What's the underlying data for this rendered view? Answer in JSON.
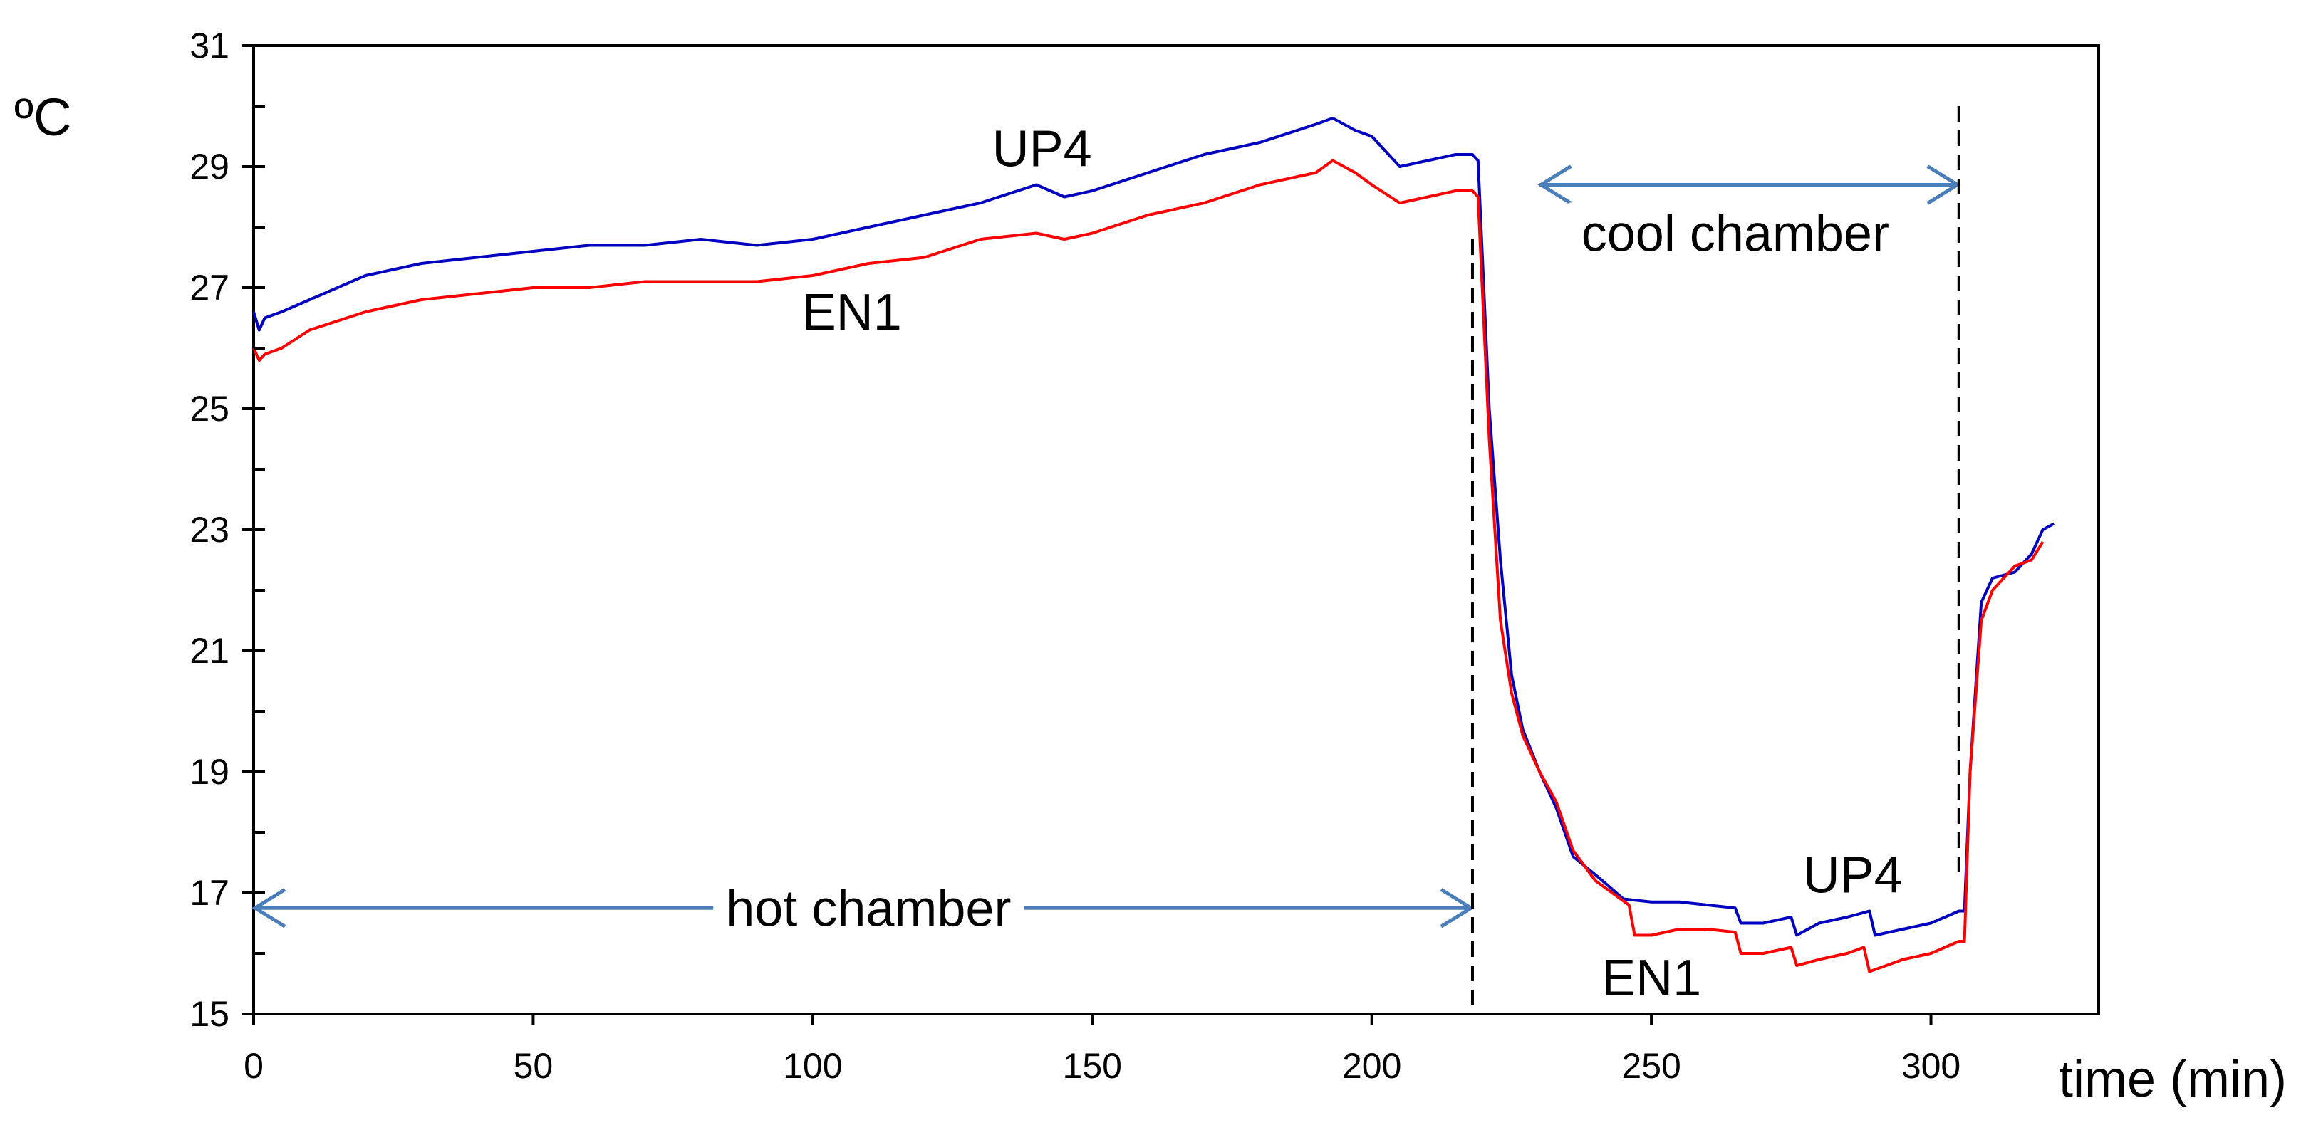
{
  "chart_data": {
    "type": "line",
    "xlabel": "time (min)",
    "ylabel": "ºC",
    "xlim": [
      0,
      330
    ],
    "ylim": [
      15,
      31
    ],
    "xticks": [
      0,
      50,
      100,
      150,
      200,
      250,
      300
    ],
    "yticks": [
      15,
      17,
      19,
      21,
      23,
      25,
      27,
      29,
      31
    ],
    "yminor_step": 1,
    "grid": false,
    "colors": {
      "UP4": "#0000c0",
      "EN1": "#ff0000",
      "arrow": "#4a7ebb",
      "frame": "#000000"
    },
    "series": [
      {
        "name": "UP4",
        "x": [
          0,
          1,
          2,
          5,
          10,
          20,
          30,
          40,
          50,
          60,
          70,
          80,
          90,
          100,
          110,
          120,
          130,
          140,
          145,
          150,
          160,
          170,
          180,
          190,
          193,
          197,
          200,
          205,
          210,
          215,
          218,
          219,
          221,
          223,
          225,
          227,
          230,
          233,
          236,
          240,
          245,
          250,
          255,
          260,
          265,
          266,
          270,
          275,
          276,
          280,
          285,
          289,
          290,
          295,
          300,
          305,
          306,
          307,
          309,
          311,
          315,
          318,
          320,
          322
        ],
        "y": [
          26.6,
          26.3,
          26.5,
          26.6,
          26.8,
          27.2,
          27.4,
          27.5,
          27.6,
          27.7,
          27.7,
          27.8,
          27.7,
          27.8,
          28.0,
          28.2,
          28.4,
          28.7,
          28.5,
          28.6,
          28.9,
          29.2,
          29.4,
          29.7,
          29.8,
          29.6,
          29.5,
          29.0,
          29.1,
          29.2,
          29.2,
          29.1,
          25.0,
          22.5,
          20.6,
          19.7,
          19.0,
          18.4,
          17.6,
          17.3,
          16.9,
          16.85,
          16.85,
          16.8,
          16.75,
          16.5,
          16.5,
          16.6,
          16.3,
          16.5,
          16.6,
          16.7,
          16.3,
          16.4,
          16.5,
          16.7,
          16.7,
          19.0,
          21.8,
          22.2,
          22.3,
          22.6,
          23.0,
          23.1
        ]
      },
      {
        "name": "EN1",
        "x": [
          0,
          1,
          2,
          5,
          10,
          20,
          30,
          40,
          50,
          60,
          70,
          80,
          90,
          100,
          110,
          120,
          130,
          140,
          145,
          150,
          160,
          170,
          180,
          190,
          193,
          197,
          200,
          205,
          210,
          215,
          218,
          219,
          221,
          223,
          225,
          227,
          230,
          233,
          236,
          240,
          246,
          247,
          250,
          255,
          260,
          265,
          266,
          270,
          275,
          276,
          280,
          285,
          288,
          289,
          295,
          300,
          305,
          306,
          307,
          309,
          311,
          315,
          318,
          320
        ],
        "y": [
          26.0,
          25.8,
          25.9,
          26.0,
          26.3,
          26.6,
          26.8,
          26.9,
          27.0,
          27.0,
          27.1,
          27.1,
          27.1,
          27.2,
          27.4,
          27.5,
          27.8,
          27.9,
          27.8,
          27.9,
          28.2,
          28.4,
          28.7,
          28.9,
          29.1,
          28.9,
          28.7,
          28.4,
          28.5,
          28.6,
          28.6,
          28.5,
          24.5,
          21.5,
          20.3,
          19.6,
          19.0,
          18.5,
          17.7,
          17.2,
          16.8,
          16.3,
          16.3,
          16.4,
          16.4,
          16.35,
          16.0,
          16.0,
          16.1,
          15.8,
          15.9,
          16.0,
          16.1,
          15.7,
          15.9,
          16.0,
          16.2,
          16.2,
          19.0,
          21.5,
          22.0,
          22.4,
          22.5,
          22.8
        ]
      }
    ],
    "annotations": [
      {
        "text": "UP4",
        "x": 141,
        "y": 29.3
      },
      {
        "text": "EN1",
        "x": 107,
        "y": 26.6
      },
      {
        "text": "UP4",
        "x": 286,
        "y": 17.3
      },
      {
        "text": "EN1",
        "x": 250,
        "y": 15.6
      },
      {
        "text": "hot chamber",
        "x": 110,
        "y": 16.75
      },
      {
        "text": "cool chamber",
        "x": 265,
        "y": 27.9
      }
    ],
    "ranges": [
      {
        "label": "hot chamber",
        "from": 0,
        "to": 218,
        "y": 16.75
      },
      {
        "label": "cool chamber",
        "from": 230,
        "to": 305,
        "y": 28.7
      }
    ],
    "vlines": [
      {
        "x": 218,
        "y_from": 15,
        "y_to": 27.8
      },
      {
        "x": 305,
        "y_from": 17.3,
        "y_to": 30.0
      }
    ]
  }
}
